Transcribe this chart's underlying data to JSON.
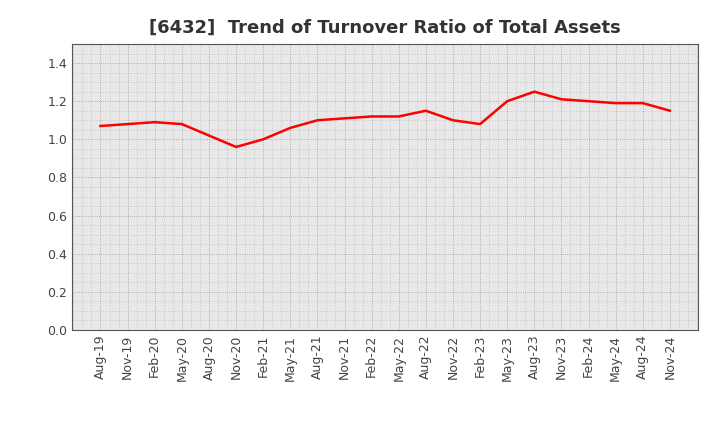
{
  "title": "[6432]  Trend of Turnover Ratio of Total Assets",
  "x_labels": [
    "Aug-19",
    "Nov-19",
    "Feb-20",
    "May-20",
    "Aug-20",
    "Nov-20",
    "Feb-21",
    "May-21",
    "Aug-21",
    "Nov-21",
    "Feb-22",
    "May-22",
    "Aug-22",
    "Nov-22",
    "Feb-23",
    "May-23",
    "Aug-23",
    "Nov-23",
    "Feb-24",
    "May-24",
    "Aug-24",
    "Nov-24"
  ],
  "y_values": [
    1.07,
    1.08,
    1.09,
    1.08,
    1.02,
    0.96,
    1.0,
    1.06,
    1.1,
    1.11,
    1.12,
    1.12,
    1.15,
    1.1,
    1.08,
    1.2,
    1.25,
    1.21,
    1.2,
    1.19,
    1.19,
    1.15
  ],
  "line_color": "#FF0000",
  "line_width": 1.8,
  "ylim": [
    0.0,
    1.5
  ],
  "yticks": [
    0.0,
    0.2,
    0.4,
    0.6,
    0.8,
    1.0,
    1.2,
    1.4
  ],
  "grid_color": "#888888",
  "background_color": "#FFFFFF",
  "plot_bg_color": "#E8E8E8",
  "title_fontsize": 13,
  "tick_fontsize": 9,
  "tick_color": "#444444"
}
